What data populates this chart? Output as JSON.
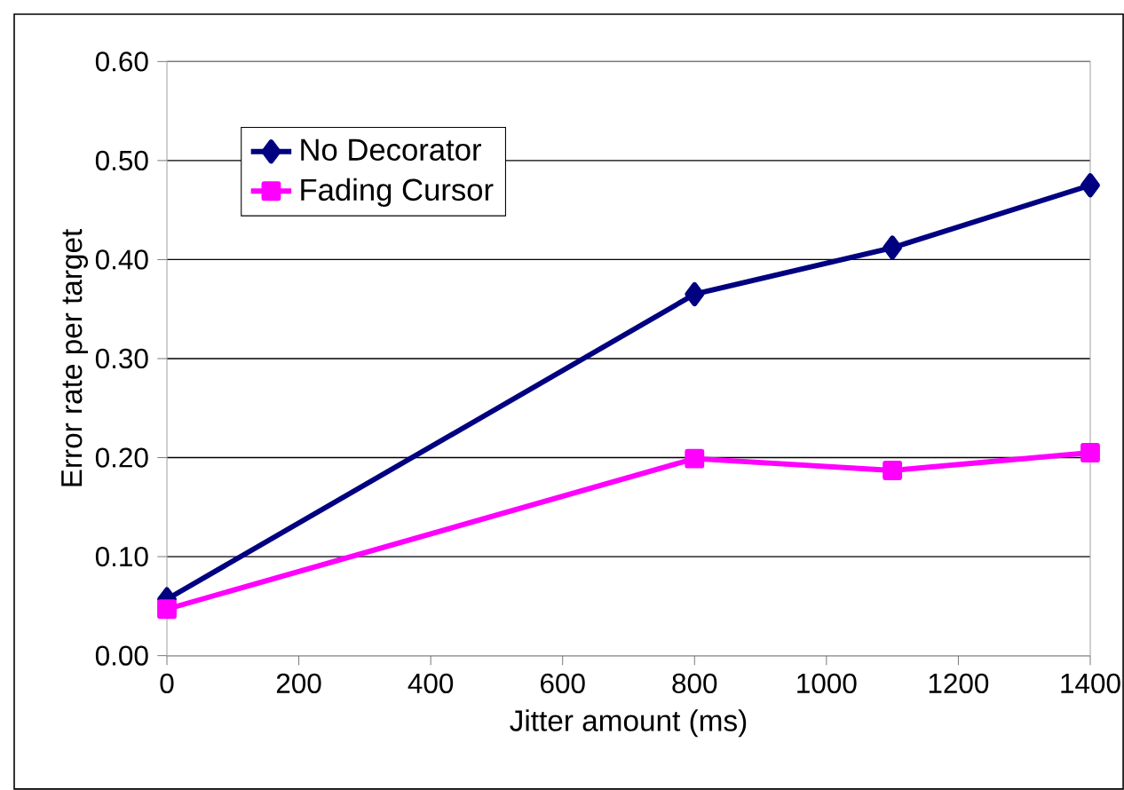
{
  "chart_data": {
    "type": "line",
    "xlabel": "Jitter amount (ms)",
    "ylabel": "Error rate per target",
    "x": [
      0,
      800,
      1100,
      1400
    ],
    "series": [
      {
        "name": "No Decorator",
        "color": "#000080",
        "marker": "diamond",
        "values": [
          0.057,
          0.365,
          0.412,
          0.475
        ]
      },
      {
        "name": "Fading Cursor",
        "color": "#ff00ff",
        "marker": "square",
        "values": [
          0.047,
          0.199,
          0.187,
          0.205
        ]
      }
    ],
    "xlim": [
      0,
      1400
    ],
    "xticks": [
      0,
      200,
      400,
      600,
      800,
      1000,
      1200,
      1400
    ],
    "ylim": [
      0,
      0.6
    ],
    "yticks": [
      {
        "value": 0,
        "label": "0.00"
      },
      {
        "value": 0.1,
        "label": "0.10"
      },
      {
        "value": 0.2,
        "label": "0.20"
      },
      {
        "value": 0.3,
        "label": "0.30"
      },
      {
        "value": 0.4,
        "label": "0.40"
      },
      {
        "value": 0.5,
        "label": "0.50"
      },
      {
        "value": 0.6,
        "label": "0.60"
      }
    ],
    "grid": "y",
    "legend": "top left",
    "line_style": "solid"
  }
}
